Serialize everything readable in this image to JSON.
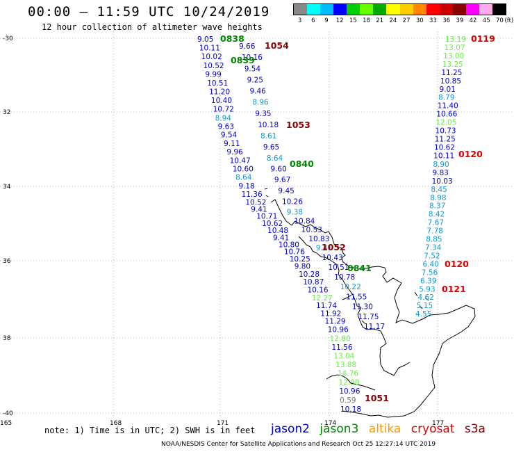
{
  "header": {
    "title": "00:00 – 11:59 UTC 10/24/2019",
    "subtitle": "12 hour collection of altimeter wave heights"
  },
  "scale": {
    "unit": "(ft)",
    "colors": [
      "#888888",
      "#00ffff",
      "#00bbff",
      "#0000ff",
      "#00cc00",
      "#66ff00",
      "#00aa00",
      "#ffff00",
      "#ffcc00",
      "#ff8800",
      "#ff0000",
      "#cc0000",
      "#880000",
      "#ff00ff",
      "#ffaaee",
      "#000000"
    ],
    "labels": [
      "3",
      "6",
      "9",
      "12",
      "15",
      "18",
      "21",
      "24",
      "27",
      "30",
      "33",
      "36",
      "39",
      "42",
      "45",
      "70"
    ]
  },
  "axes": {
    "lat_labels": [
      "-30",
      "32",
      "34",
      "36",
      "38",
      "-40"
    ],
    "lon_labels": [
      "165",
      "168",
      "171",
      "174",
      "177"
    ]
  },
  "palette": {
    "jason2": "#0000cc",
    "jason3": "#008800",
    "altika": "#ff9900",
    "cryosat": "#dd0000",
    "s3a": "#880000",
    "cyan": "#1199cc",
    "lightgreen": "#66ee44",
    "coast": "#000000",
    "grid": "#777777"
  },
  "track_a": {
    "values": [
      "9.05",
      "10.11",
      "10.02",
      "10.52",
      "9.99",
      "10.51",
      "11.20",
      "10.40",
      "10.72",
      "8.94",
      "9.63",
      "9.54",
      "9.11",
      "9.96",
      "10.47",
      "10.60",
      "8.64",
      "9.18",
      "11.36",
      "10.52",
      "9.41",
      "10.71",
      "10.62",
      "10.48",
      "9.41",
      "10.80",
      "10.76",
      "10.25",
      "9.80",
      "10.28",
      "10.87",
      "10.16",
      "12.27",
      "11.74",
      "11.92",
      "11.29",
      "10.96",
      "12.80",
      "11.56",
      "13.04",
      "13.88",
      "14.76",
      "12.90",
      "10.96",
      "0.59",
      "10.18"
    ],
    "colors": [
      "jason2",
      "jason2",
      "jason2",
      "jason2",
      "jason2",
      "jason2",
      "jason2",
      "jason2",
      "jason2",
      "cyan",
      "jason2",
      "jason2",
      "jason2",
      "jason2",
      "jason2",
      "jason2",
      "cyan",
      "jason2",
      "jason2",
      "jason2",
      "jason2",
      "jason2",
      "jason2",
      "jason2",
      "jason2",
      "jason2",
      "jason2",
      "jason2",
      "jason2",
      "jason2",
      "jason2",
      "jason2",
      "lightgreen",
      "jason2",
      "jason2",
      "jason2",
      "jason2",
      "lightgreen",
      "jason2",
      "lightgreen",
      "lightgreen",
      "lightgreen",
      "lightgreen",
      "jason2",
      "grid",
      "jason2"
    ]
  },
  "track_b": {
    "values": [
      "9.66",
      "10.16",
      "9.54",
      "9.25",
      "9.46",
      "8.96",
      "9.35",
      "10.18",
      "8.61",
      "9.65",
      "8.64",
      "9.60",
      "9.67",
      "9.45",
      "10.26",
      "9.38",
      "10.84",
      "10.53",
      "10.83",
      "9.41",
      "10.43",
      "10.51",
      "10.78",
      "10.22",
      "11.55",
      "11.30",
      "11.75",
      "11.17"
    ],
    "colors": [
      "jason2",
      "jason2",
      "jason2",
      "jason2",
      "jason2",
      "cyan",
      "jason2",
      "jason2",
      "cyan",
      "jason2",
      "cyan",
      "jason2",
      "jason2",
      "jason2",
      "jason2",
      "cyan",
      "jason2",
      "jason2",
      "jason2",
      "cyan",
      "jason2",
      "jason2",
      "jason2",
      "cyan",
      "jason2",
      "jason2",
      "jason2",
      "jason2"
    ]
  },
  "track_c": {
    "values": [
      "13.19",
      "13.07",
      "13.00",
      "13.25",
      "11.25",
      "10.85",
      "9.01",
      "8.79",
      "11.40",
      "10.66",
      "12.05",
      "10.73",
      "11.25",
      "10.62",
      "10.11",
      "8.90",
      "9.83",
      "10.03",
      "8.45",
      "8.98",
      "8.37",
      "8.42",
      "7.67",
      "7.78",
      "8.85",
      "7.34",
      "7.52",
      "6.40",
      "7.56",
      "6.39",
      "5.93",
      "4.62",
      "5.15",
      "4.55"
    ],
    "colors": [
      "lightgreen",
      "lightgreen",
      "lightgreen",
      "lightgreen",
      "jason2",
      "jason2",
      "jason2",
      "cyan",
      "jason2",
      "jason2",
      "lightgreen",
      "jason2",
      "jason2",
      "jason2",
      "jason2",
      "cyan",
      "jason2",
      "jason2",
      "cyan",
      "cyan",
      "cyan",
      "cyan",
      "cyan",
      "cyan",
      "cyan",
      "cyan",
      "cyan",
      "cyan",
      "cyan",
      "cyan",
      "cyan",
      "cyan",
      "cyan",
      "cyan"
    ]
  },
  "time_labels": {
    "values": [
      "0838",
      "1054",
      "0839",
      "1053",
      "0840",
      "1052",
      "0841",
      "1051",
      "0119",
      "0120",
      "0120",
      "0121"
    ],
    "colors": [
      "jason3",
      "s3a",
      "jason3",
      "s3a",
      "jason3",
      "s3a",
      "jason3",
      "s3a",
      "cryosat",
      "cryosat",
      "cryosat",
      "cryosat"
    ]
  },
  "footer": {
    "note": "note: 1) Time is in UTC; 2) SWH is in feet",
    "legend": [
      "jason2",
      "jason3",
      "altika",
      "cryosat",
      "s3a"
    ],
    "credit": "NOAA/NESDIS Center for Satellite Applications and Research     Oct 25 12:27:14 UTC 2019"
  }
}
